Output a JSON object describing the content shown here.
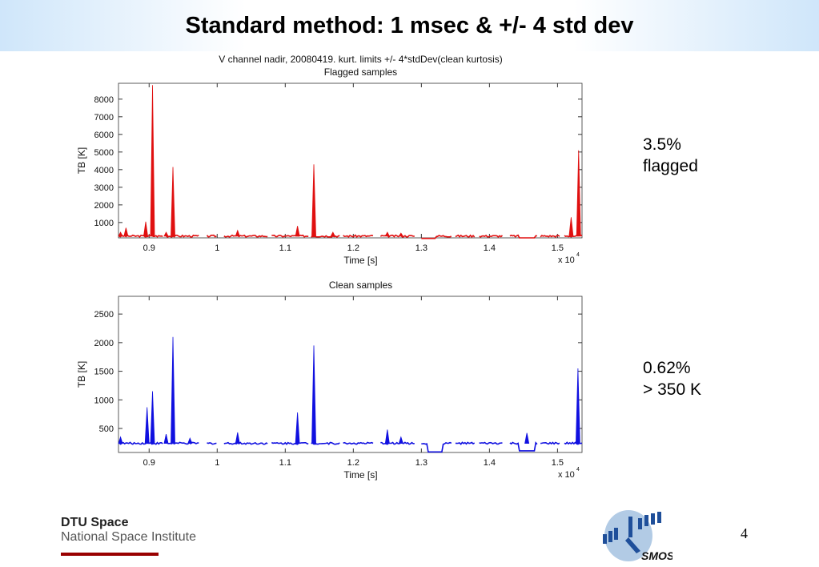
{
  "slide": {
    "title": "Standard method: 1 msec & +/- 4 std dev",
    "page_number": "4",
    "notes": [
      {
        "lines": [
          "3.5%",
          "flagged"
        ]
      },
      {
        "lines": [
          "0.62%",
          "> 350 K"
        ]
      }
    ],
    "footer": {
      "org": "DTU Space",
      "sub": "National Space Institute",
      "logo_text": "SMOS"
    }
  },
  "chart_data": [
    {
      "type": "scatter",
      "suptitle": "V channel nadir, 20080419. kurt. limits +/- 4*stdDev(clean kurtosis)",
      "title": "Flagged samples",
      "xlabel": "Time [s]",
      "ylabel": "TB [K]",
      "x_multiplier": "x 10",
      "x_exponent": "4",
      "color": "#e01010",
      "xlim": [
        0.855,
        1.536
      ],
      "ylim": [
        130,
        8900
      ],
      "xticks": [
        0.9,
        1,
        1.1,
        1.2,
        1.3,
        1.4,
        1.5
      ],
      "xtick_labels": [
        "0.9",
        "1",
        "1.1",
        "1.2",
        "1.3",
        "1.4",
        "1.5"
      ],
      "yticks": [
        1000,
        2000,
        3000,
        4000,
        5000,
        6000,
        7000,
        8000
      ],
      "ytick_labels": [
        "1000",
        "2000",
        "3000",
        "4000",
        "5000",
        "6000",
        "7000",
        "8000"
      ],
      "baseline": 230,
      "segments": [
        [
          0.856,
          0.92
        ],
        [
          0.925,
          0.975
        ],
        [
          0.985,
          1.0
        ],
        [
          1.01,
          1.075
        ],
        [
          1.08,
          1.135
        ],
        [
          1.138,
          1.18
        ],
        [
          1.185,
          1.23
        ],
        [
          1.24,
          1.29
        ],
        [
          1.3,
          1.345
        ],
        [
          1.35,
          1.38
        ],
        [
          1.385,
          1.42
        ],
        [
          1.43,
          1.47
        ],
        [
          1.475,
          1.505
        ],
        [
          1.51,
          1.536
        ]
      ],
      "dips": [
        [
          1.31,
          100
        ],
        [
          1.455,
          130
        ]
      ],
      "spikes": [
        [
          0.858,
          450
        ],
        [
          0.866,
          700
        ],
        [
          0.895,
          1050
        ],
        [
          0.905,
          8800
        ],
        [
          0.925,
          450
        ],
        [
          0.935,
          4150
        ],
        [
          1.03,
          550
        ],
        [
          1.118,
          800
        ],
        [
          1.142,
          4300
        ],
        [
          1.17,
          450
        ],
        [
          1.25,
          450
        ],
        [
          1.27,
          400
        ],
        [
          1.52,
          1300
        ],
        [
          1.531,
          5100
        ]
      ]
    },
    {
      "type": "scatter",
      "title": "Clean samples",
      "xlabel": "Time [s]",
      "ylabel": "TB [K]",
      "x_multiplier": "x 10",
      "x_exponent": "4",
      "color": "#1010e0",
      "xlim": [
        0.855,
        1.536
      ],
      "ylim": [
        80,
        2810
      ],
      "xticks": [
        0.9,
        1,
        1.1,
        1.2,
        1.3,
        1.4,
        1.5
      ],
      "xtick_labels": [
        "0.9",
        "1",
        "1.1",
        "1.2",
        "1.3",
        "1.4",
        "1.5"
      ],
      "yticks": [
        500,
        1000,
        1500,
        2000,
        2500
      ],
      "ytick_labels": [
        "500",
        "1000",
        "1500",
        "2000",
        "2500"
      ],
      "baseline": 240,
      "segments": [
        [
          0.856,
          0.92
        ],
        [
          0.925,
          0.975
        ],
        [
          0.985,
          1.0
        ],
        [
          1.01,
          1.075
        ],
        [
          1.08,
          1.135
        ],
        [
          1.138,
          1.18
        ],
        [
          1.185,
          1.23
        ],
        [
          1.24,
          1.29
        ],
        [
          1.3,
          1.345
        ],
        [
          1.35,
          1.38
        ],
        [
          1.385,
          1.42
        ],
        [
          1.43,
          1.47
        ],
        [
          1.475,
          1.505
        ],
        [
          1.51,
          1.536
        ]
      ],
      "dips": [
        [
          1.32,
          90
        ],
        [
          1.455,
          110
        ]
      ],
      "spikes": [
        [
          0.858,
          350
        ],
        [
          0.897,
          870
        ],
        [
          0.905,
          1150
        ],
        [
          0.925,
          400
        ],
        [
          0.935,
          2100
        ],
        [
          0.96,
          330
        ],
        [
          1.03,
          430
        ],
        [
          1.118,
          780
        ],
        [
          1.142,
          1950
        ],
        [
          1.25,
          480
        ],
        [
          1.27,
          350
        ],
        [
          1.455,
          420
        ],
        [
          1.53,
          1550
        ]
      ]
    }
  ]
}
